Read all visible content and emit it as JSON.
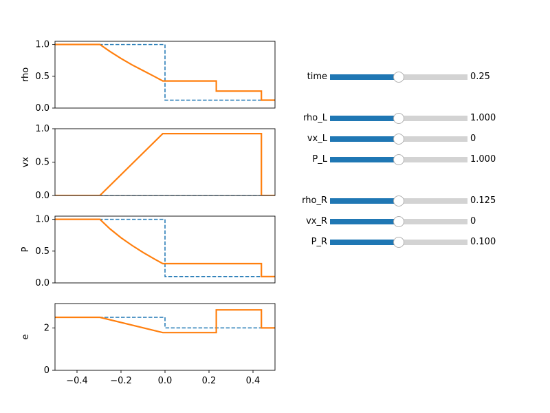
{
  "chart_data": [
    {
      "type": "line",
      "ylabel": "rho",
      "xlim": [
        -0.5,
        0.5
      ],
      "ylim": [
        0,
        1.05
      ],
      "yticks": [
        "0.0",
        "0.5",
        "1.0"
      ],
      "ytick_values": [
        0.0,
        0.5,
        1.0
      ],
      "show_xticks": false,
      "series": [
        {
          "style": "dashed",
          "color": "#1f77b4",
          "x": [
            -0.5,
            0.0,
            0.0,
            0.5
          ],
          "y": [
            1.0,
            1.0,
            0.125,
            0.125
          ]
        },
        {
          "style": "solid",
          "color": "#ff7f0e",
          "x": [
            -0.5,
            -0.296,
            -0.25,
            -0.2,
            -0.15,
            -0.1,
            -0.05,
            -0.01,
            0.233,
            0.233,
            0.438,
            0.438,
            0.5
          ],
          "y": [
            1.0,
            1.0,
            0.89,
            0.78,
            0.68,
            0.59,
            0.5,
            0.426,
            0.426,
            0.266,
            0.266,
            0.125,
            0.125
          ]
        }
      ]
    },
    {
      "type": "line",
      "ylabel": "vx",
      "xlim": [
        -0.5,
        0.5
      ],
      "ylim": [
        0,
        1.0
      ],
      "yticks": [
        "0.0",
        "0.5",
        "1.0"
      ],
      "ytick_values": [
        0.0,
        0.5,
        1.0
      ],
      "show_xticks": false,
      "series": [
        {
          "style": "dashed",
          "color": "#1f77b4",
          "x": [
            -0.5,
            0.5
          ],
          "y": [
            0.0,
            0.0
          ]
        },
        {
          "style": "solid",
          "color": "#ff7f0e",
          "x": [
            -0.5,
            -0.296,
            -0.01,
            0.438,
            0.438,
            0.5
          ],
          "y": [
            0.0,
            0.0,
            0.927,
            0.927,
            0.0,
            0.0
          ]
        }
      ]
    },
    {
      "type": "line",
      "ylabel": "P",
      "xlim": [
        -0.5,
        0.5
      ],
      "ylim": [
        0,
        1.05
      ],
      "yticks": [
        "0.0",
        "0.5",
        "1.0"
      ],
      "ytick_values": [
        0.0,
        0.5,
        1.0
      ],
      "show_xticks": false,
      "series": [
        {
          "style": "dashed",
          "color": "#1f77b4",
          "x": [
            -0.5,
            0.0,
            0.0,
            0.5
          ],
          "y": [
            1.0,
            1.0,
            0.1,
            0.1
          ]
        },
        {
          "style": "solid",
          "color": "#ff7f0e",
          "x": [
            -0.5,
            -0.296,
            -0.25,
            -0.2,
            -0.15,
            -0.1,
            -0.05,
            -0.01,
            0.438,
            0.438,
            0.5
          ],
          "y": [
            1.0,
            1.0,
            0.85,
            0.71,
            0.59,
            0.48,
            0.38,
            0.303,
            0.303,
            0.1,
            0.1
          ]
        }
      ]
    },
    {
      "type": "line",
      "ylabel": "e",
      "xlim": [
        -0.5,
        0.5
      ],
      "ylim": [
        0,
        3.15
      ],
      "yticks": [
        "0",
        "2"
      ],
      "ytick_values": [
        0,
        2
      ],
      "show_xticks": true,
      "xticks": [
        "−0.4",
        "−0.2",
        "0.0",
        "0.2",
        "0.4"
      ],
      "xtick_values": [
        -0.4,
        -0.2,
        0.0,
        0.2,
        0.4
      ],
      "series": [
        {
          "style": "dashed",
          "color": "#1f77b4",
          "x": [
            -0.5,
            0.0,
            0.0,
            0.5
          ],
          "y": [
            2.5,
            2.5,
            2.0,
            2.0
          ]
        },
        {
          "style": "solid",
          "color": "#ff7f0e",
          "x": [
            -0.5,
            -0.296,
            -0.01,
            0.233,
            0.233,
            0.438,
            0.438,
            0.5
          ],
          "y": [
            2.5,
            2.5,
            1.78,
            1.78,
            2.85,
            2.85,
            2.0,
            2.0
          ]
        }
      ]
    }
  ],
  "sliders": [
    {
      "label": "time",
      "value": "0.25",
      "fraction": 0.5
    },
    {
      "label": "rho_L",
      "value": "1.000",
      "fraction": 0.5
    },
    {
      "label": "vx_L",
      "value": "0",
      "fraction": 0.5
    },
    {
      "label": "P_L",
      "value": "1.000",
      "fraction": 0.5
    },
    {
      "label": "rho_R",
      "value": "0.125",
      "fraction": 0.5
    },
    {
      "label": "vx_R",
      "value": "0",
      "fraction": 0.5
    },
    {
      "label": "P_R",
      "value": "0.100",
      "fraction": 0.5
    }
  ],
  "colors": {
    "fill": "#1f77b4",
    "track": "#d3d3d3",
    "initial": "#1f77b4",
    "solution": "#ff7f0e"
  }
}
